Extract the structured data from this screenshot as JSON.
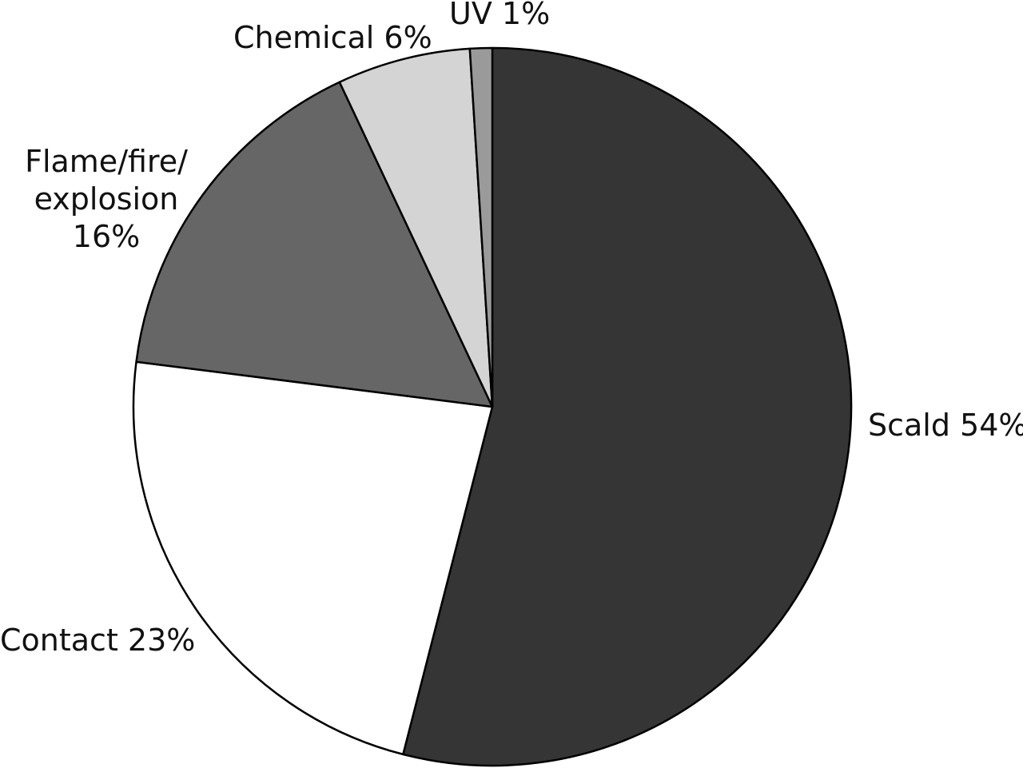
{
  "chart_data": {
    "type": "pie",
    "title": "",
    "start": "12 o'clock",
    "direction": "clockwise",
    "slices": [
      {
        "label": "Scald 54%",
        "label_lines": [
          "Scald 54%"
        ],
        "value": 54,
        "color": "#353535"
      },
      {
        "label": "Contact 23%",
        "label_lines": [
          "Contact 23%"
        ],
        "value": 23,
        "color": "#ffffff"
      },
      {
        "label": "Flame/fire/ explosion 16%",
        "label_lines": [
          "Flame/fire/",
          "explosion",
          "16%"
        ],
        "value": 16,
        "color": "#666666"
      },
      {
        "label": "Chemical 6%",
        "label_lines": [
          "Chemical 6%"
        ],
        "value": 6,
        "color": "#d4d4d4"
      },
      {
        "label": "UV 1%",
        "label_lines": [
          "UV 1%"
        ],
        "value": 1,
        "color": "#9a9a9a"
      }
    ]
  }
}
